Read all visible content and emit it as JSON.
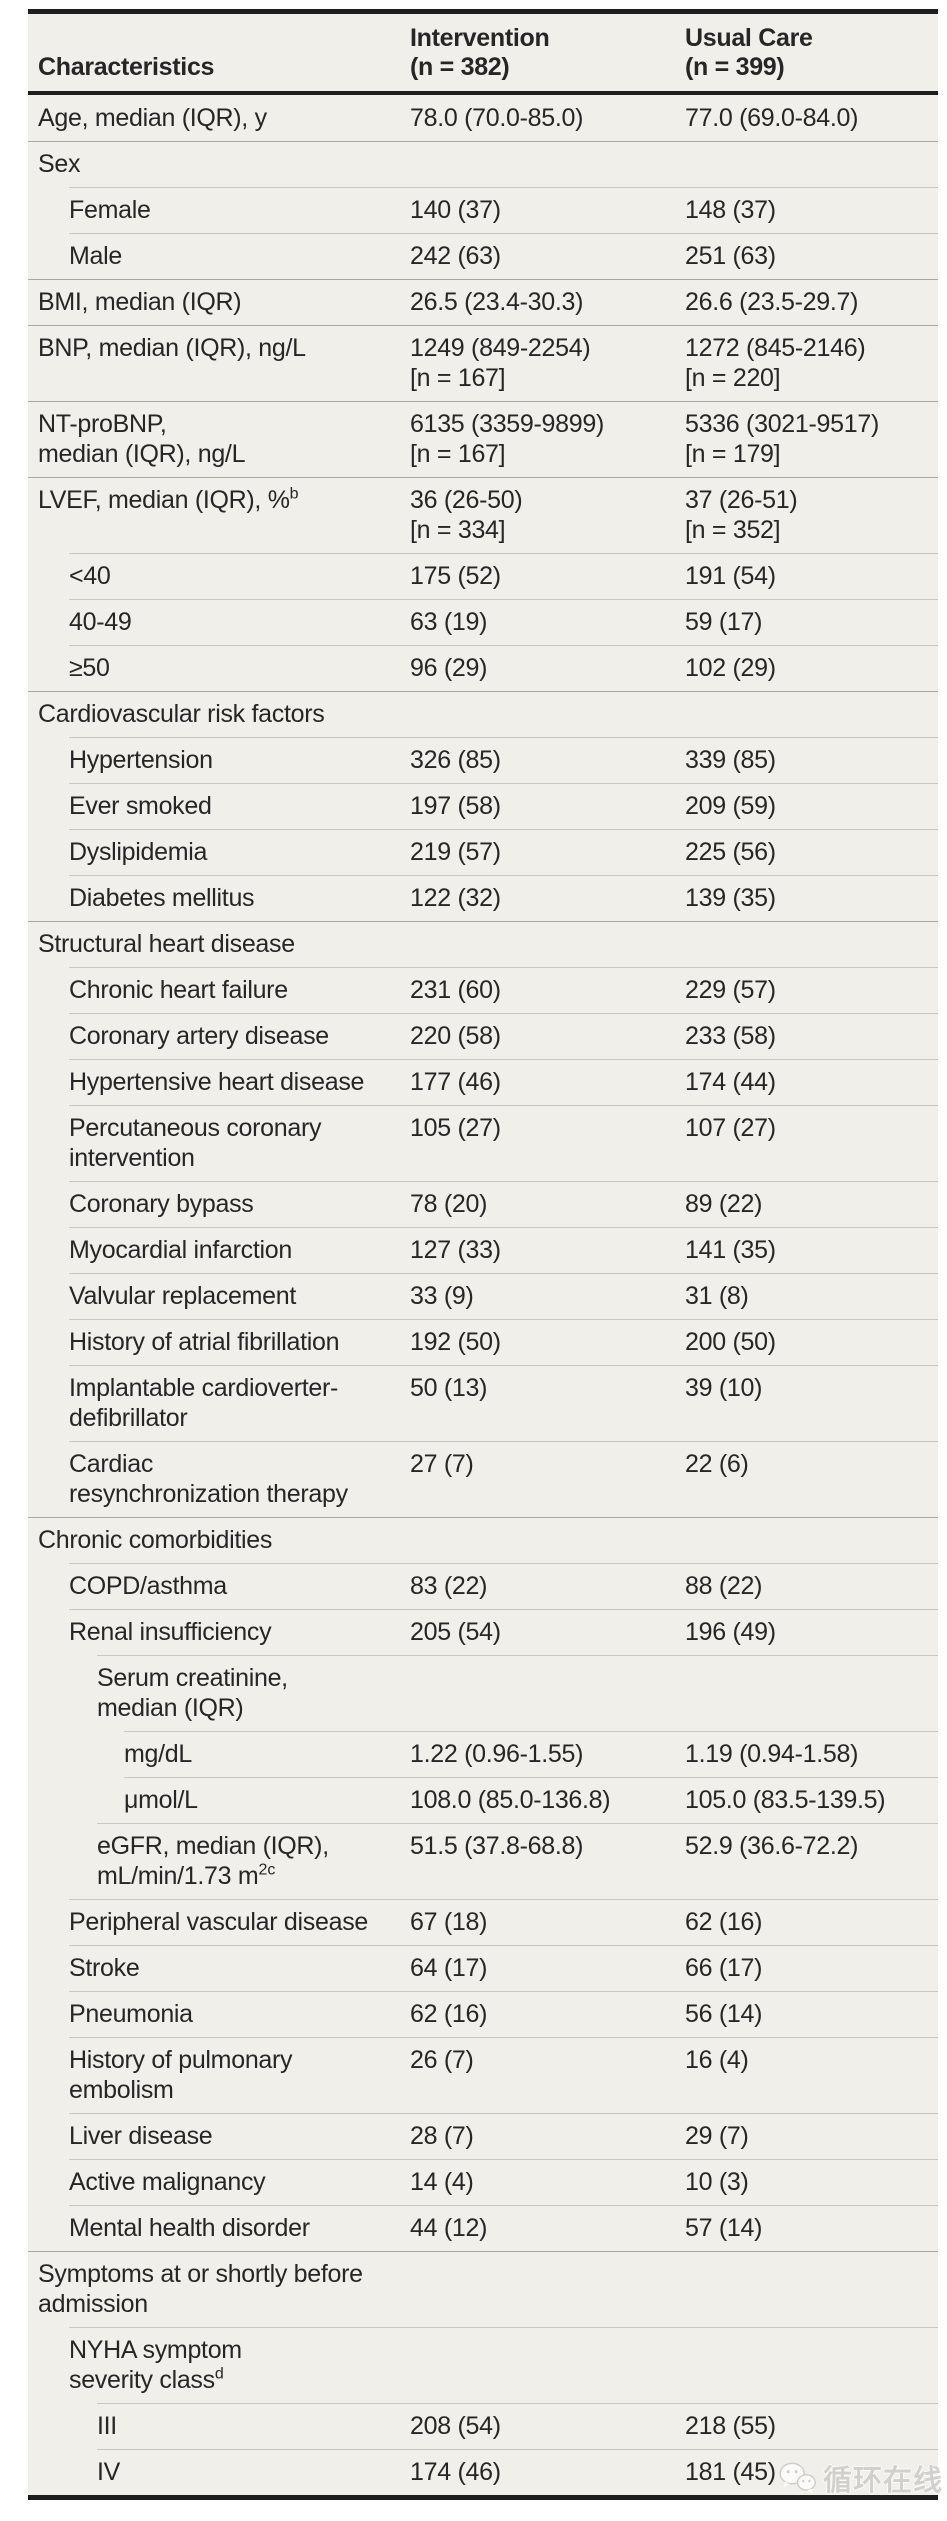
{
  "header": {
    "col1": "Characteristics",
    "col2": "Intervention\n(n = 382)",
    "col3": "Usual Care\n(n = 399)"
  },
  "rows": [
    {
      "label": "Age, median (IQR), y",
      "sup": "",
      "level": 0,
      "v1": "78.0 (70.0-85.0)",
      "v2": "77.0 (69.0-84.0)"
    },
    {
      "label": "Sex",
      "sup": "",
      "level": 0,
      "v1": "",
      "v2": ""
    },
    {
      "label": "Female",
      "sup": "",
      "level": 1,
      "v1": "140 (37)",
      "v2": "148 (37)"
    },
    {
      "label": "Male",
      "sup": "",
      "level": 1,
      "v1": "242 (63)",
      "v2": "251 (63)"
    },
    {
      "label": "BMI, median (IQR)",
      "sup": "",
      "level": 0,
      "v1": "26.5 (23.4-30.3)",
      "v2": "26.6 (23.5-29.7)"
    },
    {
      "label": "BNP, median (IQR), ng/L",
      "sup": "",
      "level": 0,
      "v1": "1249 (849-2254)\n[n = 167]",
      "v2": "1272 (845-2146)\n[n = 220]"
    },
    {
      "label": "NT-proBNP,\nmedian (IQR), ng/L",
      "sup": "",
      "level": 0,
      "v1": "6135 (3359-9899)\n[n = 167]",
      "v2": "5336 (3021-9517)\n[n = 179]"
    },
    {
      "label": "LVEF, median (IQR), %",
      "sup": "b",
      "level": 0,
      "v1": "36 (26-50)\n[n = 334]",
      "v2": "37 (26-51)\n[n = 352]"
    },
    {
      "label": "<40",
      "sup": "",
      "level": 1,
      "v1": "175 (52)",
      "v2": "191 (54)"
    },
    {
      "label": "40-49",
      "sup": "",
      "level": 1,
      "v1": "63 (19)",
      "v2": "59 (17)"
    },
    {
      "label": "≥50",
      "sup": "",
      "level": 1,
      "v1": "96 (29)",
      "v2": "102 (29)"
    },
    {
      "label": "Cardiovascular risk factors",
      "sup": "",
      "level": 0,
      "v1": "",
      "v2": ""
    },
    {
      "label": "Hypertension",
      "sup": "",
      "level": 1,
      "v1": "326 (85)",
      "v2": "339 (85)"
    },
    {
      "label": "Ever smoked",
      "sup": "",
      "level": 1,
      "v1": "197 (58)",
      "v2": "209 (59)"
    },
    {
      "label": "Dyslipidemia",
      "sup": "",
      "level": 1,
      "v1": "219 (57)",
      "v2": "225 (56)"
    },
    {
      "label": "Diabetes mellitus",
      "sup": "",
      "level": 1,
      "v1": "122 (32)",
      "v2": "139 (35)"
    },
    {
      "label": "Structural heart disease",
      "sup": "",
      "level": 0,
      "v1": "",
      "v2": ""
    },
    {
      "label": "Chronic heart failure",
      "sup": "",
      "level": 1,
      "v1": "231 (60)",
      "v2": "229 (57)"
    },
    {
      "label": "Coronary artery disease",
      "sup": "",
      "level": 1,
      "v1": "220 (58)",
      "v2": "233 (58)"
    },
    {
      "label": "Hypertensive heart disease",
      "sup": "",
      "level": 1,
      "v1": "177 (46)",
      "v2": "174 (44)"
    },
    {
      "label": "Percutaneous coronary\nintervention",
      "sup": "",
      "level": 1,
      "v1": "105 (27)",
      "v2": "107 (27)"
    },
    {
      "label": "Coronary bypass",
      "sup": "",
      "level": 1,
      "v1": "78 (20)",
      "v2": "89 (22)"
    },
    {
      "label": "Myocardial infarction",
      "sup": "",
      "level": 1,
      "v1": "127 (33)",
      "v2": "141 (35)"
    },
    {
      "label": "Valvular replacement",
      "sup": "",
      "level": 1,
      "v1": "33 (9)",
      "v2": "31 (8)"
    },
    {
      "label": "History of atrial fibrillation",
      "sup": "",
      "level": 1,
      "v1": "192 (50)",
      "v2": "200 (50)"
    },
    {
      "label": "Implantable cardioverter-\ndefibrillator",
      "sup": "",
      "level": 1,
      "v1": "50 (13)",
      "v2": "39 (10)"
    },
    {
      "label": "Cardiac\nresynchronization therapy",
      "sup": "",
      "level": 1,
      "v1": "27 (7)",
      "v2": "22 (6)"
    },
    {
      "label": "Chronic comorbidities",
      "sup": "",
      "level": 0,
      "v1": "",
      "v2": ""
    },
    {
      "label": "COPD/asthma",
      "sup": "",
      "level": 1,
      "v1": "83 (22)",
      "v2": "88 (22)"
    },
    {
      "label": "Renal insufficiency",
      "sup": "",
      "level": 1,
      "v1": "205 (54)",
      "v2": "196 (49)"
    },
    {
      "label": "Serum creatinine,\nmedian (IQR)",
      "sup": "",
      "level": 2,
      "v1": "",
      "v2": ""
    },
    {
      "label": "mg/dL",
      "sup": "",
      "level": 3,
      "v1": "1.22 (0.96-1.55)",
      "v2": "1.19 (0.94-1.58)"
    },
    {
      "label": "μmol/L",
      "sup": "",
      "level": 3,
      "v1": "108.0 (85.0-136.8)",
      "v2": "105.0 (83.5-139.5)"
    },
    {
      "label": "eGFR, median (IQR),\nmL/min/1.73 m",
      "sup": "2c",
      "level": 2,
      "v1": "51.5 (37.8-68.8)",
      "v2": "52.9 (36.6-72.2)"
    },
    {
      "label": "Peripheral vascular disease",
      "sup": "",
      "level": 1,
      "v1": "67 (18)",
      "v2": "62 (16)"
    },
    {
      "label": "Stroke",
      "sup": "",
      "level": 1,
      "v1": "64 (17)",
      "v2": "66 (17)"
    },
    {
      "label": "Pneumonia",
      "sup": "",
      "level": 1,
      "v1": "62 (16)",
      "v2": "56 (14)"
    },
    {
      "label": "History of pulmonary\nembolism",
      "sup": "",
      "level": 1,
      "v1": "26 (7)",
      "v2": "16 (4)"
    },
    {
      "label": "Liver disease",
      "sup": "",
      "level": 1,
      "v1": "28 (7)",
      "v2": "29 (7)"
    },
    {
      "label": "Active malignancy",
      "sup": "",
      "level": 1,
      "v1": "14 (4)",
      "v2": "10 (3)"
    },
    {
      "label": "Mental health disorder",
      "sup": "",
      "level": 1,
      "v1": "44 (12)",
      "v2": "57 (14)"
    },
    {
      "label": "Symptoms at or shortly before\nadmission",
      "sup": "",
      "level": 0,
      "v1": "",
      "v2": ""
    },
    {
      "label": "NYHA symptom\nseverity class",
      "sup": "d",
      "level": 1,
      "v1": "",
      "v2": ""
    },
    {
      "label": "III",
      "sup": "",
      "level": 2,
      "v1": "208 (54)",
      "v2": "218 (55)"
    },
    {
      "label": "IV",
      "sup": "",
      "level": 2,
      "v1": "174 (46)",
      "v2": "181 (45)"
    }
  ],
  "watermark": {
    "text": "循环在线",
    "icon": "wechat-logo"
  },
  "colors": {
    "table_background": "#f0efe9",
    "text": "#262626",
    "heavy_rule": "#1e1e1e",
    "separator_full": "#a9a79e",
    "separator_inset": "#c9c7be",
    "watermark": "#cbc9c3"
  }
}
